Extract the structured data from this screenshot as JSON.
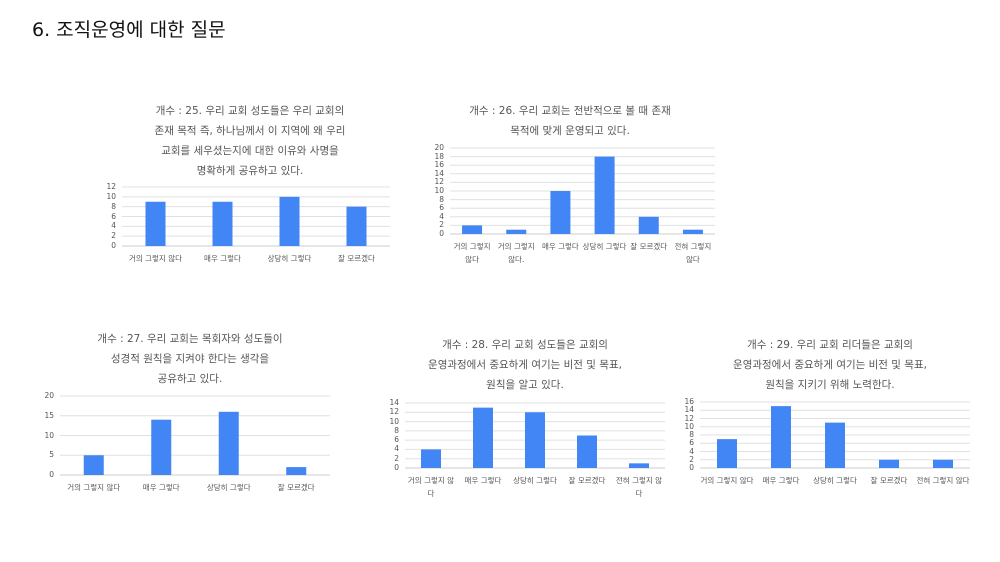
{
  "page": {
    "title": "6. 조직운영에 대한 질문"
  },
  "colors": {
    "bar": "#4285f4",
    "grid": "#e0e0e0",
    "text": "#555555"
  },
  "chart_data": [
    {
      "type": "bar",
      "title": "개수 : 25. 우리 교회 성도들은 우리 교회의\n존재 목적 즉, 하나님께서 이 지역에 왜 우리\n교회를 세우셨는지에 대한 이유와 사명을\n명확하게 공유하고 있다.",
      "categories": [
        "거의 그렇지 않다",
        "매우 그렇다",
        "상당히 그렇다",
        "잘 모르겠다"
      ],
      "values": [
        9,
        9,
        10,
        8
      ],
      "yticks": [
        "0",
        "2",
        "4",
        "6",
        "8",
        "10",
        "12"
      ],
      "ylim": [
        0,
        12
      ],
      "grid": true,
      "legend": "none"
    },
    {
      "type": "bar",
      "title": "개수 : 26. 우리 교회는 전반적으로 볼 때 존재\n목적에 맞게 운영되고 있다.",
      "categories": [
        "거의 그렇지 않다",
        "거의 그렇지 않다.",
        "매우 그렇다",
        "상당히 그렇다",
        "잘 모르겠다",
        "전혀 그렇지 않다"
      ],
      "values": [
        2,
        1,
        10,
        18,
        4,
        1
      ],
      "yticks": [
        "0",
        "2",
        "4",
        "6",
        "8",
        "10",
        "12",
        "14",
        "16",
        "18",
        "20"
      ],
      "ylim": [
        0,
        20
      ],
      "grid": true,
      "legend": "none"
    },
    {
      "type": "bar",
      "title": "개수 : 27. 우리 교회는 목회자와 성도들이\n성경적 원칙을 지켜야 한다는 생각을\n공유하고 있다.",
      "categories": [
        "거의 그렇지 않다",
        "매우 그렇다",
        "상당히 그렇다",
        "잘 모르겠다"
      ],
      "values": [
        5,
        14,
        16,
        2
      ],
      "yticks": [
        "0",
        "5",
        "10",
        "15",
        "20"
      ],
      "ylim": [
        0,
        20
      ],
      "grid": true,
      "legend": "none"
    },
    {
      "type": "bar",
      "title": "개수 : 28. 우리 교회 성도들은 교회의\n운영과정에서 중요하게 여기는 비전 및 목표,\n원칙을 알고 있다.",
      "categories": [
        "거의 그렇지 않다",
        "매우 그렇다",
        "상당히 그렇다",
        "잘 모르겠다",
        "전혀 그렇지 않다"
      ],
      "values": [
        4,
        13,
        12,
        7,
        1
      ],
      "yticks": [
        "0",
        "2",
        "4",
        "6",
        "8",
        "10",
        "12",
        "14"
      ],
      "ylim": [
        0,
        14
      ],
      "grid": true,
      "legend": "none"
    },
    {
      "type": "bar",
      "title": "개수 : 29. 우리 교회 리더들은 교회의\n운영과정에서 중요하게 여기는 비전 및 목표,\n원칙을 지키기 위해 노력한다.",
      "categories": [
        "거의 그렇지 않다",
        "매우 그렇다",
        "상당히 그렇다",
        "잘 모르겠다",
        "전혀 그렇지 않다"
      ],
      "values": [
        7,
        15,
        11,
        2,
        2
      ],
      "yticks": [
        "0",
        "2",
        "4",
        "6",
        "8",
        "10",
        "12",
        "14",
        "16"
      ],
      "ylim": [
        0,
        16
      ],
      "grid": true,
      "legend": "none"
    }
  ]
}
